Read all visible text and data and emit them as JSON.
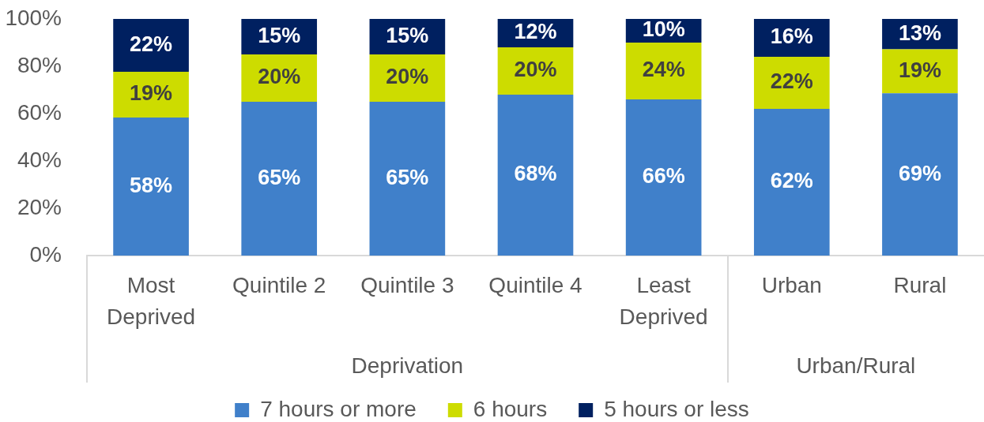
{
  "chart_data": {
    "type": "bar",
    "stacked": true,
    "categories": [
      "Most Deprived",
      "Quintile 2",
      "Quintile 3",
      "Quintile 4",
      "Least Deprived",
      "Urban",
      "Rural"
    ],
    "series": [
      {
        "name": "7 hours or more",
        "color": "#4080ca",
        "values": [
          58.3,
          65,
          65,
          68,
          66,
          62,
          68.6
        ],
        "value_labels": [
          "58%",
          "65%",
          "65%",
          "68%",
          "66%",
          "62%",
          "69%"
        ]
      },
      {
        "name": "6 hours",
        "color": "#cddc00",
        "values": [
          19.4,
          20,
          20,
          20,
          24,
          22,
          18.6
        ],
        "value_labels": [
          "19%",
          "20%",
          "20%",
          "20%",
          "24%",
          "22%",
          "19%"
        ]
      },
      {
        "name": "5 hours or less",
        "color": "#002060",
        "values": [
          22.3,
          15,
          15,
          12,
          10,
          16,
          12.8
        ],
        "value_labels": [
          "22%",
          "15%",
          "15%",
          "12%",
          "10%",
          "16%",
          "13%"
        ]
      }
    ],
    "ylim": [
      0,
      100
    ],
    "yticks": [
      {
        "value": 0,
        "label": "0%"
      },
      {
        "value": 20,
        "label": "20%"
      },
      {
        "value": 40,
        "label": "40%"
      },
      {
        "value": 60,
        "label": "60%"
      },
      {
        "value": 80,
        "label": "80%"
      },
      {
        "value": 100,
        "label": "100%"
      }
    ],
    "grid": false,
    "legend": "bottom",
    "annotations": [
      "Deprivation",
      "Urban/Rural"
    ]
  }
}
